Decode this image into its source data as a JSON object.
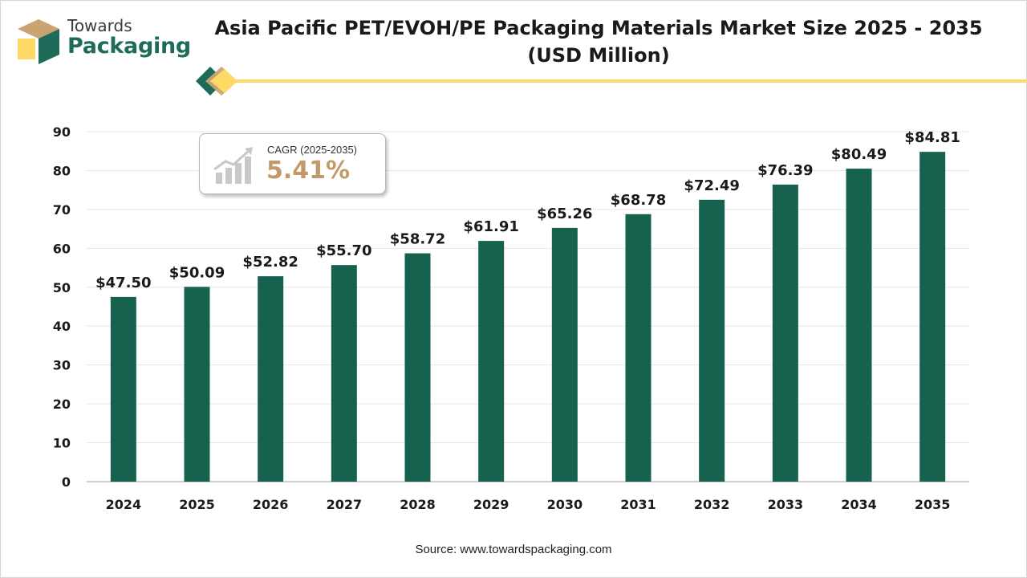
{
  "brand": {
    "line1": "Towards",
    "line2": "Packaging",
    "colors": {
      "dark": "#1f6b5a",
      "tan": "#c9a472",
      "yellow": "#ffd966"
    }
  },
  "header": {
    "title_line1": "Asia Pacific PET/EVOH/PE Packaging Materials Market Size 2025 - 2035",
    "title_line2": "(USD Million)"
  },
  "cagr": {
    "label": "CAGR (2025-2035)",
    "value": "5.41%",
    "icon": "growth-chart-icon"
  },
  "source": "Source: www.towardspackaging.com",
  "chart_data": {
    "type": "bar",
    "categories": [
      "2024",
      "2025",
      "2026",
      "2027",
      "2028",
      "2029",
      "2030",
      "2031",
      "2032",
      "2033",
      "2034",
      "2035"
    ],
    "values": [
      47.5,
      50.09,
      52.82,
      55.7,
      58.72,
      61.91,
      65.26,
      68.78,
      72.49,
      76.39,
      80.49,
      84.81
    ],
    "data_labels": [
      "$47.50",
      "$50.09",
      "$52.82",
      "$55.70",
      "$58.72",
      "$61.91",
      "$65.26",
      "$68.78",
      "$72.49",
      "$76.39",
      "$80.49",
      "$84.81"
    ],
    "ylim": [
      0,
      90
    ],
    "yticks": [
      0,
      10,
      20,
      30,
      40,
      50,
      60,
      70,
      80,
      90
    ],
    "grid": true,
    "bar_color": "#17614f"
  }
}
